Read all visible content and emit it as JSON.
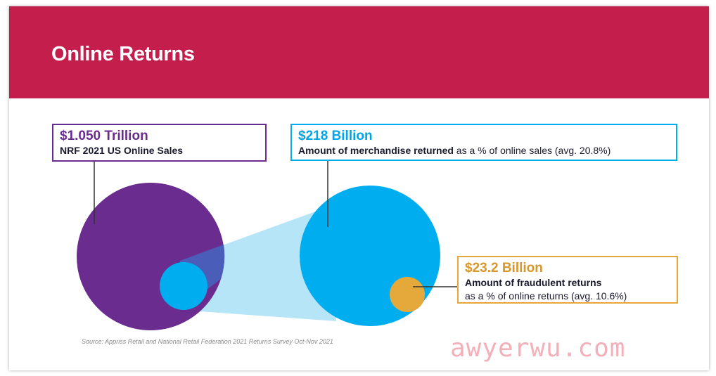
{
  "header": {
    "title": "Online Returns",
    "background": "#c41e4d"
  },
  "callouts": {
    "online_sales": {
      "value": "$1.050 Trillion",
      "label": "NRF 2021 US Online Sales",
      "color": "#6a2c8e"
    },
    "merchandise_returned": {
      "value": "$218 Billion",
      "label_bold": "Amount of merchandise returned",
      "label_rest": " as a % of online sales (avg. 20.8%)",
      "color": "#00aeef"
    },
    "fraudulent_returns": {
      "value": "$23.2 Billion",
      "label_bold": "Amount of fraudulent returns",
      "label_rest": "as a % of online returns (avg. 10.6%)",
      "color": "#e5a83b"
    }
  },
  "source": "Source: Appriss Retail and National Retail Federation 2021 Returns Survey Oct-Nov 2021",
  "watermark": "awyerwu.com",
  "colors": {
    "sales_circle": "#6a2c8e",
    "returns_circle": "#00aeef",
    "returns_overlap": "#4a5db8",
    "projection": "#aee2f7",
    "fraud_circle": "#e5a83b"
  }
}
